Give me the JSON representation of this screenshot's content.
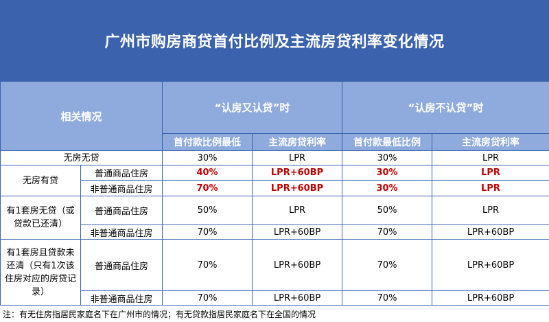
{
  "title": "广州市购房商贷首付比例及主流房贷利率变化情况",
  "header": {
    "related": "相关情况",
    "group_a": "“认房又认贷”时",
    "group_b": "“认房不认贷”时",
    "col_down_a": "首付款比例最低",
    "col_rate_a": "主流房贷利率",
    "col_down_b": "首付款最低比例",
    "col_rate_b": "主流房贷利率"
  },
  "rows": {
    "r1": {
      "cat": "无房无贷",
      "down_a": "30%",
      "rate_a": "LPR",
      "down_b": "30%",
      "rate_b": "LPR"
    },
    "r2": {
      "cat": "无房有贷",
      "sub1": "普通商品住房",
      "sub2": "非普通商品住房",
      "s1_down_a": "40%",
      "s1_rate_a": "LPR+60BP",
      "s1_down_b": "30%",
      "s1_rate_b": "LPR",
      "s2_down_a": "70%",
      "s2_rate_a": "LPR+60BP",
      "s2_down_b": "30%",
      "s2_rate_b": "LPR"
    },
    "r3": {
      "cat": "有1套房无贷（或贷款已还清）",
      "sub1": "普通商品住房",
      "sub2": "非普通商品住房",
      "s1_down_a": "50%",
      "s1_rate_a": "LPR",
      "s1_down_b": "50%",
      "s1_rate_b": "LPR",
      "s2_down_a": "70%",
      "s2_rate_a": "LPR+60BP",
      "s2_down_b": "70%",
      "s2_rate_b": "LPR+60BP"
    },
    "r4": {
      "cat": "有1套房且贷款未还清（只有1次该住房对应的房贷记录）",
      "sub1": "普通商品住房",
      "sub2": "非普通商品住房",
      "s1_down_a": "70%",
      "s1_rate_a": "LPR+60BP",
      "s1_down_b": "70%",
      "s1_rate_b": "LPR+60BP",
      "s2_down_a": "70%",
      "s2_rate_a": "LPR+60BP",
      "s2_down_b": "70%",
      "s2_rate_b": "LPR+60BP"
    }
  },
  "footnote": "注：有无住房指居民家庭名下在广州市的情况；有无贷款指居民家庭名下在全国的情况",
  "colors": {
    "title_bg": "#3a62ad",
    "header_bg": "#8faadc",
    "border": "#3a62ad",
    "highlight": "#c00000"
  }
}
